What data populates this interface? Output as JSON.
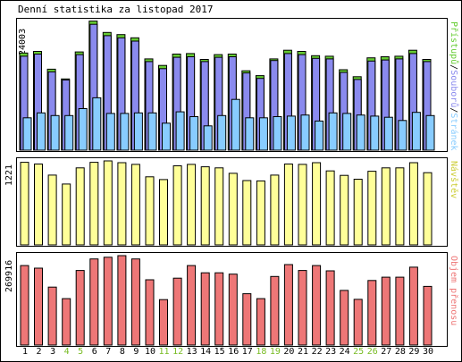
{
  "title": "Denní statistika za listopad 2017",
  "colors": {
    "hits": "#66cc33",
    "files": "#8a8aee",
    "pages": "#88ccff",
    "visits": "#ffff99",
    "kbytes": "#ee7777",
    "weekday_label": "#000000",
    "weekend_label": "#77bb22"
  },
  "chart_data": [
    {
      "type": "bar",
      "panel": "top",
      "ylabel_max": "24003",
      "legend": {
        "hits": "Přístupů",
        "sep1": "/",
        "files": "Souborů",
        "sep2": "/",
        "pages": "Stránek"
      },
      "categories": [
        "1",
        "2",
        "3",
        "4",
        "5",
        "6",
        "7",
        "8",
        "9",
        "10",
        "11",
        "12",
        "13",
        "14",
        "15",
        "16",
        "17",
        "18",
        "19",
        "20",
        "21",
        "22",
        "23",
        "24",
        "25",
        "26",
        "27",
        "28",
        "29",
        "30"
      ],
      "series": [
        {
          "name": "Přístupů",
          "values": [
            18000,
            18300,
            15000,
            13200,
            18200,
            23900,
            21800,
            21400,
            20800,
            16900,
            15700,
            17800,
            17900,
            16800,
            17700,
            17800,
            14700,
            13800,
            16900,
            18500,
            18300,
            17500,
            17400,
            14900,
            13600,
            17100,
            17300,
            17400,
            18500,
            16800
          ]
        },
        {
          "name": "Souborů",
          "values": [
            17400,
            17800,
            14500,
            13000,
            17700,
            23300,
            21200,
            20800,
            20200,
            16400,
            15100,
            17200,
            17300,
            16400,
            17200,
            17300,
            14300,
            13300,
            16600,
            17900,
            17700,
            17000,
            16900,
            14400,
            13100,
            16500,
            16700,
            16900,
            17900,
            16400
          ]
        },
        {
          "name": "Stránek",
          "values": [
            6000,
            6900,
            6400,
            6400,
            7700,
            9700,
            6800,
            6800,
            6900,
            6900,
            5000,
            7100,
            6200,
            4500,
            6400,
            9400,
            6000,
            6000,
            6200,
            6300,
            6500,
            5400,
            6900,
            6800,
            6500,
            6300,
            6100,
            5500,
            7000,
            6400
          ]
        }
      ]
    },
    {
      "type": "bar",
      "panel": "middle",
      "ylabel_max": "1221",
      "legend": {
        "visits": "Návštěv"
      },
      "categories": [
        "1",
        "2",
        "3",
        "4",
        "5",
        "6",
        "7",
        "8",
        "9",
        "10",
        "11",
        "12",
        "13",
        "14",
        "15",
        "16",
        "17",
        "18",
        "19",
        "20",
        "21",
        "22",
        "23",
        "24",
        "25",
        "26",
        "27",
        "28",
        "29",
        "30"
      ],
      "series": [
        {
          "name": "Návštěv",
          "values": [
            1200,
            1175,
            1015,
            885,
            1120,
            1200,
            1221,
            1195,
            1170,
            990,
            950,
            1150,
            1170,
            1135,
            1120,
            1040,
            935,
            930,
            1015,
            1175,
            1170,
            1195,
            1075,
            1010,
            955,
            1070,
            1120,
            1120,
            1195,
            1050
          ]
        }
      ]
    },
    {
      "type": "bar",
      "panel": "bottom",
      "ylabel_max": "269916",
      "legend": {
        "kbytes": "Objem přenosu"
      },
      "categories": [
        "1",
        "2",
        "3",
        "4",
        "5",
        "6",
        "7",
        "8",
        "9",
        "10",
        "11",
        "12",
        "13",
        "14",
        "15",
        "16",
        "17",
        "18",
        "19",
        "20",
        "21",
        "22",
        "23",
        "24",
        "25",
        "26",
        "27",
        "28",
        "29",
        "30"
      ],
      "series": [
        {
          "name": "Objem přenosu",
          "values": [
            240000,
            232000,
            175000,
            140000,
            225000,
            260000,
            265000,
            269916,
            260000,
            197000,
            137000,
            202000,
            240000,
            218000,
            218000,
            214000,
            155000,
            140000,
            207000,
            243000,
            225000,
            240000,
            224000,
            165000,
            138000,
            195000,
            205000,
            205000,
            235000,
            177000
          ]
        }
      ]
    }
  ],
  "weekend_days": [
    "4",
    "5",
    "11",
    "12",
    "18",
    "19",
    "25",
    "26"
  ]
}
